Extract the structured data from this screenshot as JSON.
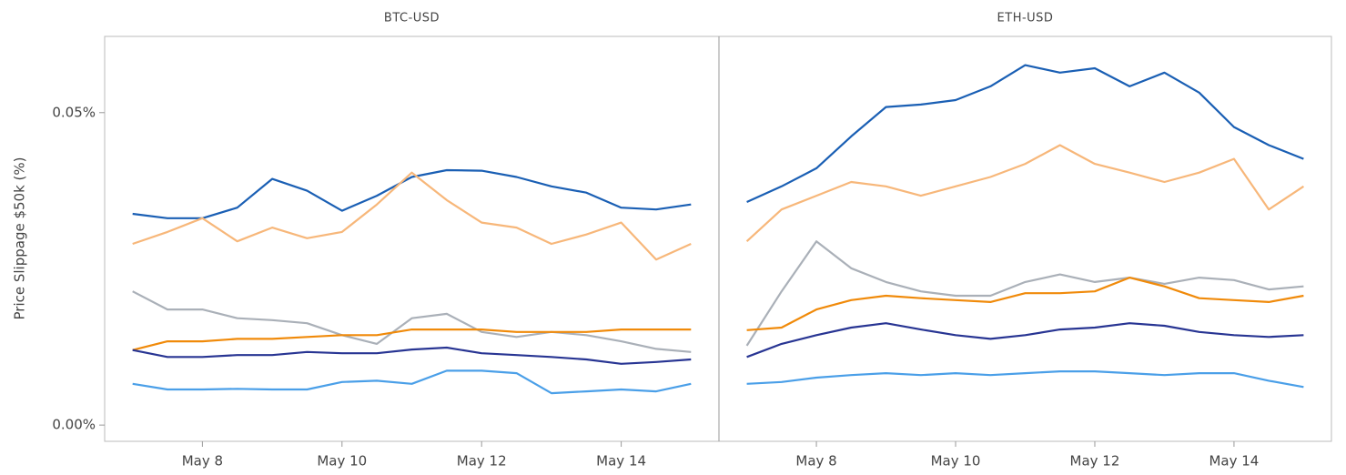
{
  "chart_data": [
    {
      "type": "line",
      "title": "BTC-USD",
      "y_label": "Price Slippage $50k (%)",
      "x": [
        7,
        7.5,
        8,
        8.5,
        9,
        9.5,
        10,
        10.5,
        11,
        11.5,
        12,
        12.5,
        13,
        13.5,
        14,
        14.5,
        15
      ],
      "xlim": [
        6.6,
        15.4
      ],
      "xticks": [
        {
          "value": 8,
          "label": "May 8"
        },
        {
          "value": 10,
          "label": "May 10"
        },
        {
          "value": 12,
          "label": "May 12"
        },
        {
          "value": 14,
          "label": "May 14"
        }
      ],
      "ylim": [
        -0.0026,
        0.0622
      ],
      "yticks": [
        {
          "value": 0,
          "label": "0.00%"
        },
        {
          "value": 0.05,
          "label": "0.05%"
        }
      ],
      "series": [
        {
          "color": "#1a5fb4",
          "values": [
            0.0338,
            0.0331,
            0.0331,
            0.0348,
            0.0394,
            0.0375,
            0.0343,
            0.0367,
            0.0397,
            0.0408,
            0.0407,
            0.0397,
            0.0382,
            0.0372,
            0.0348,
            0.0345,
            0.0353
          ]
        },
        {
          "color": "#f7b77a",
          "values": [
            0.029,
            0.0309,
            0.0331,
            0.0294,
            0.0316,
            0.0299,
            0.0309,
            0.0353,
            0.0404,
            0.036,
            0.0324,
            0.0316,
            0.029,
            0.0305,
            0.0324,
            0.0265,
            0.029
          ]
        },
        {
          "color": "#aab0b8",
          "values": [
            0.0214,
            0.0185,
            0.0185,
            0.0171,
            0.0168,
            0.0163,
            0.0144,
            0.013,
            0.0171,
            0.0178,
            0.0149,
            0.0141,
            0.0149,
            0.0144,
            0.0134,
            0.0122,
            0.0117
          ]
        },
        {
          "color": "#f08a0a",
          "values": [
            0.012,
            0.0134,
            0.0134,
            0.0138,
            0.0138,
            0.0141,
            0.0144,
            0.0144,
            0.0153,
            0.0153,
            0.0153,
            0.0149,
            0.0149,
            0.0149,
            0.0153,
            0.0153,
            0.0153
          ]
        },
        {
          "color": "#283593",
          "values": [
            0.012,
            0.0109,
            0.0109,
            0.0112,
            0.0112,
            0.0117,
            0.0115,
            0.0115,
            0.0121,
            0.0124,
            0.0115,
            0.0112,
            0.0109,
            0.0105,
            0.0098,
            0.0101,
            0.0105
          ]
        },
        {
          "color": "#4a9fe8",
          "values": [
            0.0066,
            0.0057,
            0.0057,
            0.0058,
            0.0057,
            0.0057,
            0.0069,
            0.0071,
            0.0066,
            0.0087,
            0.0087,
            0.0083,
            0.0051,
            0.0054,
            0.0057,
            0.0054,
            0.0066
          ]
        }
      ]
    },
    {
      "type": "line",
      "title": "ETH-USD",
      "x": [
        7,
        7.5,
        8,
        8.5,
        9,
        9.5,
        10,
        10.5,
        11,
        11.5,
        12,
        12.5,
        13,
        13.5,
        14,
        14.5,
        15
      ],
      "xlim": [
        6.6,
        15.4
      ],
      "xticks": [
        {
          "value": 8,
          "label": "May 8"
        },
        {
          "value": 10,
          "label": "May 10"
        },
        {
          "value": 12,
          "label": "May 12"
        },
        {
          "value": 14,
          "label": "May 14"
        }
      ],
      "ylim": [
        -0.0026,
        0.0622
      ],
      "series": [
        {
          "color": "#1a5fb4",
          "values": [
            0.0357,
            0.0382,
            0.0411,
            0.0462,
            0.0509,
            0.0513,
            0.052,
            0.0542,
            0.0576,
            0.0564,
            0.0571,
            0.0542,
            0.0564,
            0.0532,
            0.0477,
            0.0448,
            0.0426
          ]
        },
        {
          "color": "#f7b77a",
          "values": [
            0.0294,
            0.0345,
            0.0367,
            0.0389,
            0.0382,
            0.0367,
            0.0382,
            0.0397,
            0.0418,
            0.0448,
            0.0418,
            0.0404,
            0.0389,
            0.0404,
            0.0426,
            0.0345,
            0.0382
          ]
        },
        {
          "color": "#aab0b8",
          "values": [
            0.0127,
            0.0214,
            0.0294,
            0.0251,
            0.0229,
            0.0214,
            0.0207,
            0.0207,
            0.0229,
            0.0241,
            0.0229,
            0.0236,
            0.0226,
            0.0236,
            0.0232,
            0.0217,
            0.0222
          ]
        },
        {
          "color": "#f08a0a",
          "values": [
            0.0152,
            0.0156,
            0.0185,
            0.02,
            0.0207,
            0.0203,
            0.02,
            0.0197,
            0.0211,
            0.0211,
            0.0214,
            0.0236,
            0.0222,
            0.0203,
            0.02,
            0.0197,
            0.0207
          ]
        },
        {
          "color": "#283593",
          "values": [
            0.0109,
            0.013,
            0.0144,
            0.0156,
            0.0163,
            0.0153,
            0.0144,
            0.0138,
            0.0144,
            0.0153,
            0.0156,
            0.0163,
            0.0159,
            0.0149,
            0.0144,
            0.0141,
            0.0144
          ]
        },
        {
          "color": "#4a9fe8",
          "values": [
            0.0066,
            0.0069,
            0.0076,
            0.008,
            0.0083,
            0.008,
            0.0083,
            0.008,
            0.0083,
            0.0086,
            0.0086,
            0.0083,
            0.008,
            0.0083,
            0.0083,
            0.0071,
            0.0061
          ]
        }
      ]
    }
  ]
}
